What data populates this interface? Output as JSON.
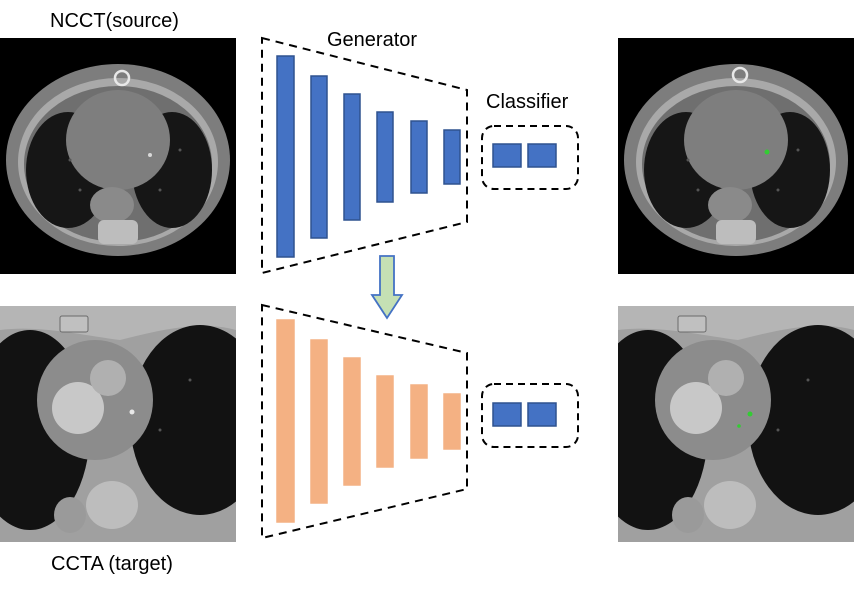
{
  "labels": {
    "source": "NCCT(source)",
    "target": "CCTA (target)",
    "generator": "Generator",
    "classifier": "Classifier"
  },
  "generators": [
    {
      "role": "source",
      "color": "#4472C4",
      "stroke": "#2F528F",
      "bars": [
        {
          "x": 277,
          "top": 56,
          "bottom": 257,
          "w": 17
        },
        {
          "x": 311,
          "top": 76,
          "bottom": 238,
          "w": 16
        },
        {
          "x": 344,
          "top": 94,
          "bottom": 220,
          "w": 16
        },
        {
          "x": 377,
          "top": 112,
          "bottom": 202,
          "w": 16
        },
        {
          "x": 411,
          "top": 121,
          "bottom": 193,
          "w": 16
        },
        {
          "x": 444,
          "top": 130,
          "bottom": 184,
          "w": 16
        }
      ]
    },
    {
      "role": "target",
      "color": "#F4B183",
      "stroke": "#F4B183",
      "bars": [
        {
          "x": 277,
          "top": 320,
          "bottom": 522,
          "w": 17
        },
        {
          "x": 311,
          "top": 340,
          "bottom": 503,
          "w": 16
        },
        {
          "x": 344,
          "top": 358,
          "bottom": 485,
          "w": 16
        },
        {
          "x": 377,
          "top": 376,
          "bottom": 467,
          "w": 16
        },
        {
          "x": 411,
          "top": 385,
          "bottom": 458,
          "w": 16
        },
        {
          "x": 444,
          "top": 394,
          "bottom": 449,
          "w": 16
        }
      ]
    }
  ],
  "colors": {
    "arrow_fill": "#C5E0B4",
    "arrow_stroke": "#4472C4",
    "ct_background": "#000000",
    "ct_tissue": "#8a8a8a",
    "ct_lung": "#141414",
    "lesion_marker": "#33cc33"
  }
}
